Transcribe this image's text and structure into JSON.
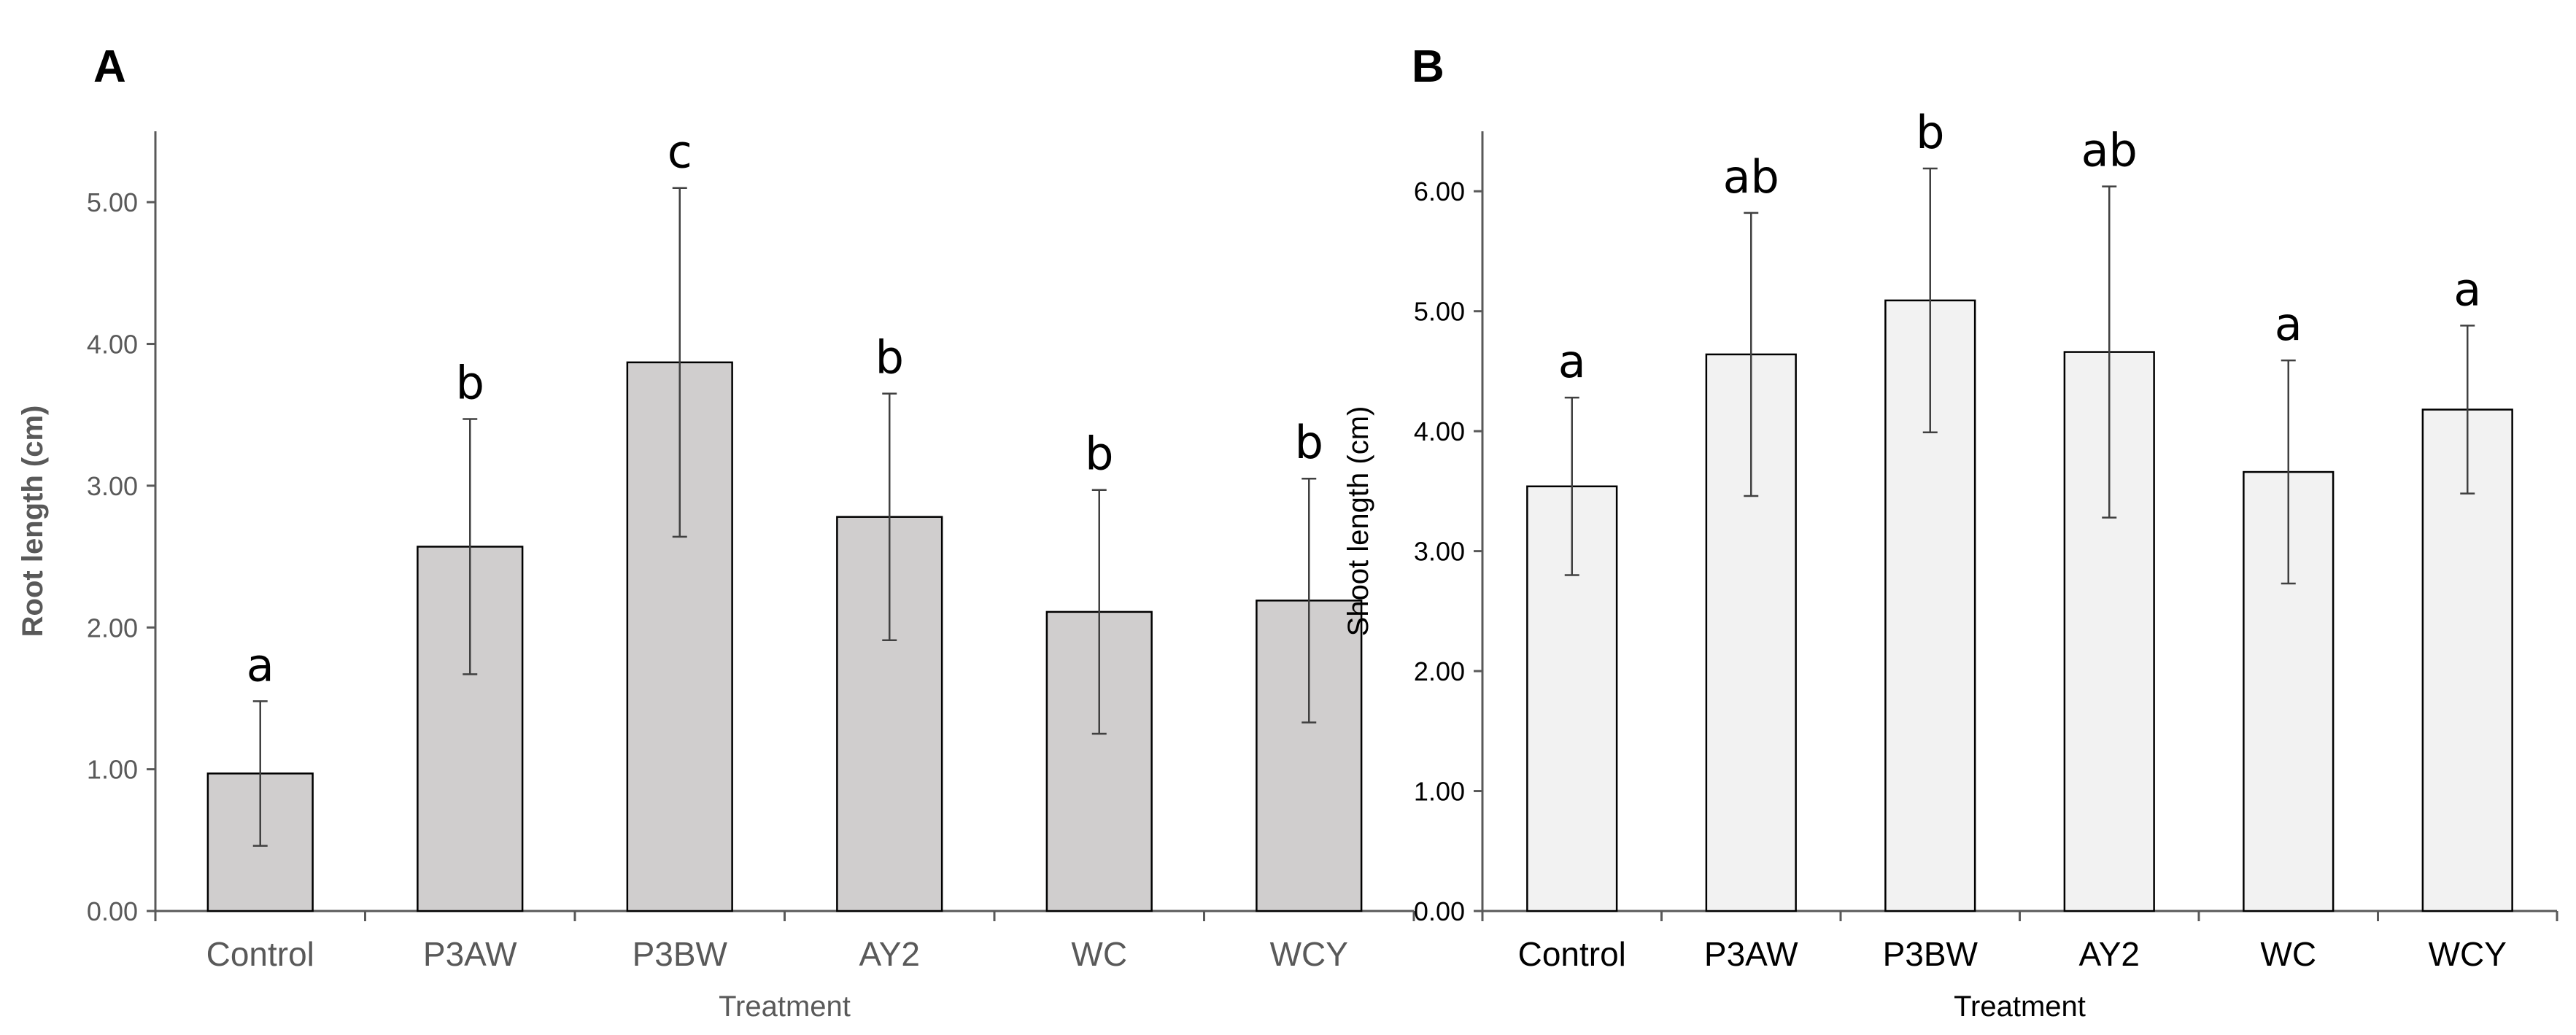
{
  "chart_data": [
    {
      "panel_label": "A",
      "type": "bar",
      "title": "",
      "xlabel": "Treatment",
      "ylabel": "Root length (cm)",
      "ylim": [
        0,
        5.5
      ],
      "yticks": [
        "0.00",
        "1.00",
        "2.00",
        "3.00",
        "4.00",
        "5.00"
      ],
      "categories": [
        "Control",
        "P3AW",
        "P3BW",
        "AY2",
        "WC",
        "WCY"
      ],
      "values": [
        0.97,
        2.57,
        3.87,
        2.78,
        2.11,
        2.19
      ],
      "errors": [
        0.51,
        0.9,
        1.23,
        0.87,
        0.86,
        0.86
      ],
      "significance": [
        "a",
        "b",
        "c",
        "b",
        "b",
        "b"
      ],
      "bar_color": "#d0cece",
      "axis_text_color": "#595959",
      "grid": false
    },
    {
      "panel_label": "B",
      "type": "bar",
      "title": "",
      "xlabel": "Treatment",
      "ylabel": "Shoot length (cm)",
      "ylim": [
        0,
        6.5
      ],
      "yticks": [
        "0.00",
        "1.00",
        "2.00",
        "3.00",
        "4.00",
        "5.00",
        "6.00"
      ],
      "categories": [
        "Control",
        "P3AW",
        "P3BW",
        "AY2",
        "WC",
        "WCY"
      ],
      "values": [
        3.54,
        4.64,
        5.09,
        4.66,
        3.66,
        4.18
      ],
      "errors": [
        0.74,
        1.18,
        1.1,
        1.38,
        0.93,
        0.7
      ],
      "significance": [
        "a",
        "ab",
        "b",
        "ab",
        "a",
        "a"
      ],
      "bar_color": "#f2f2f2",
      "axis_text_color": "#000000",
      "grid": false
    }
  ]
}
